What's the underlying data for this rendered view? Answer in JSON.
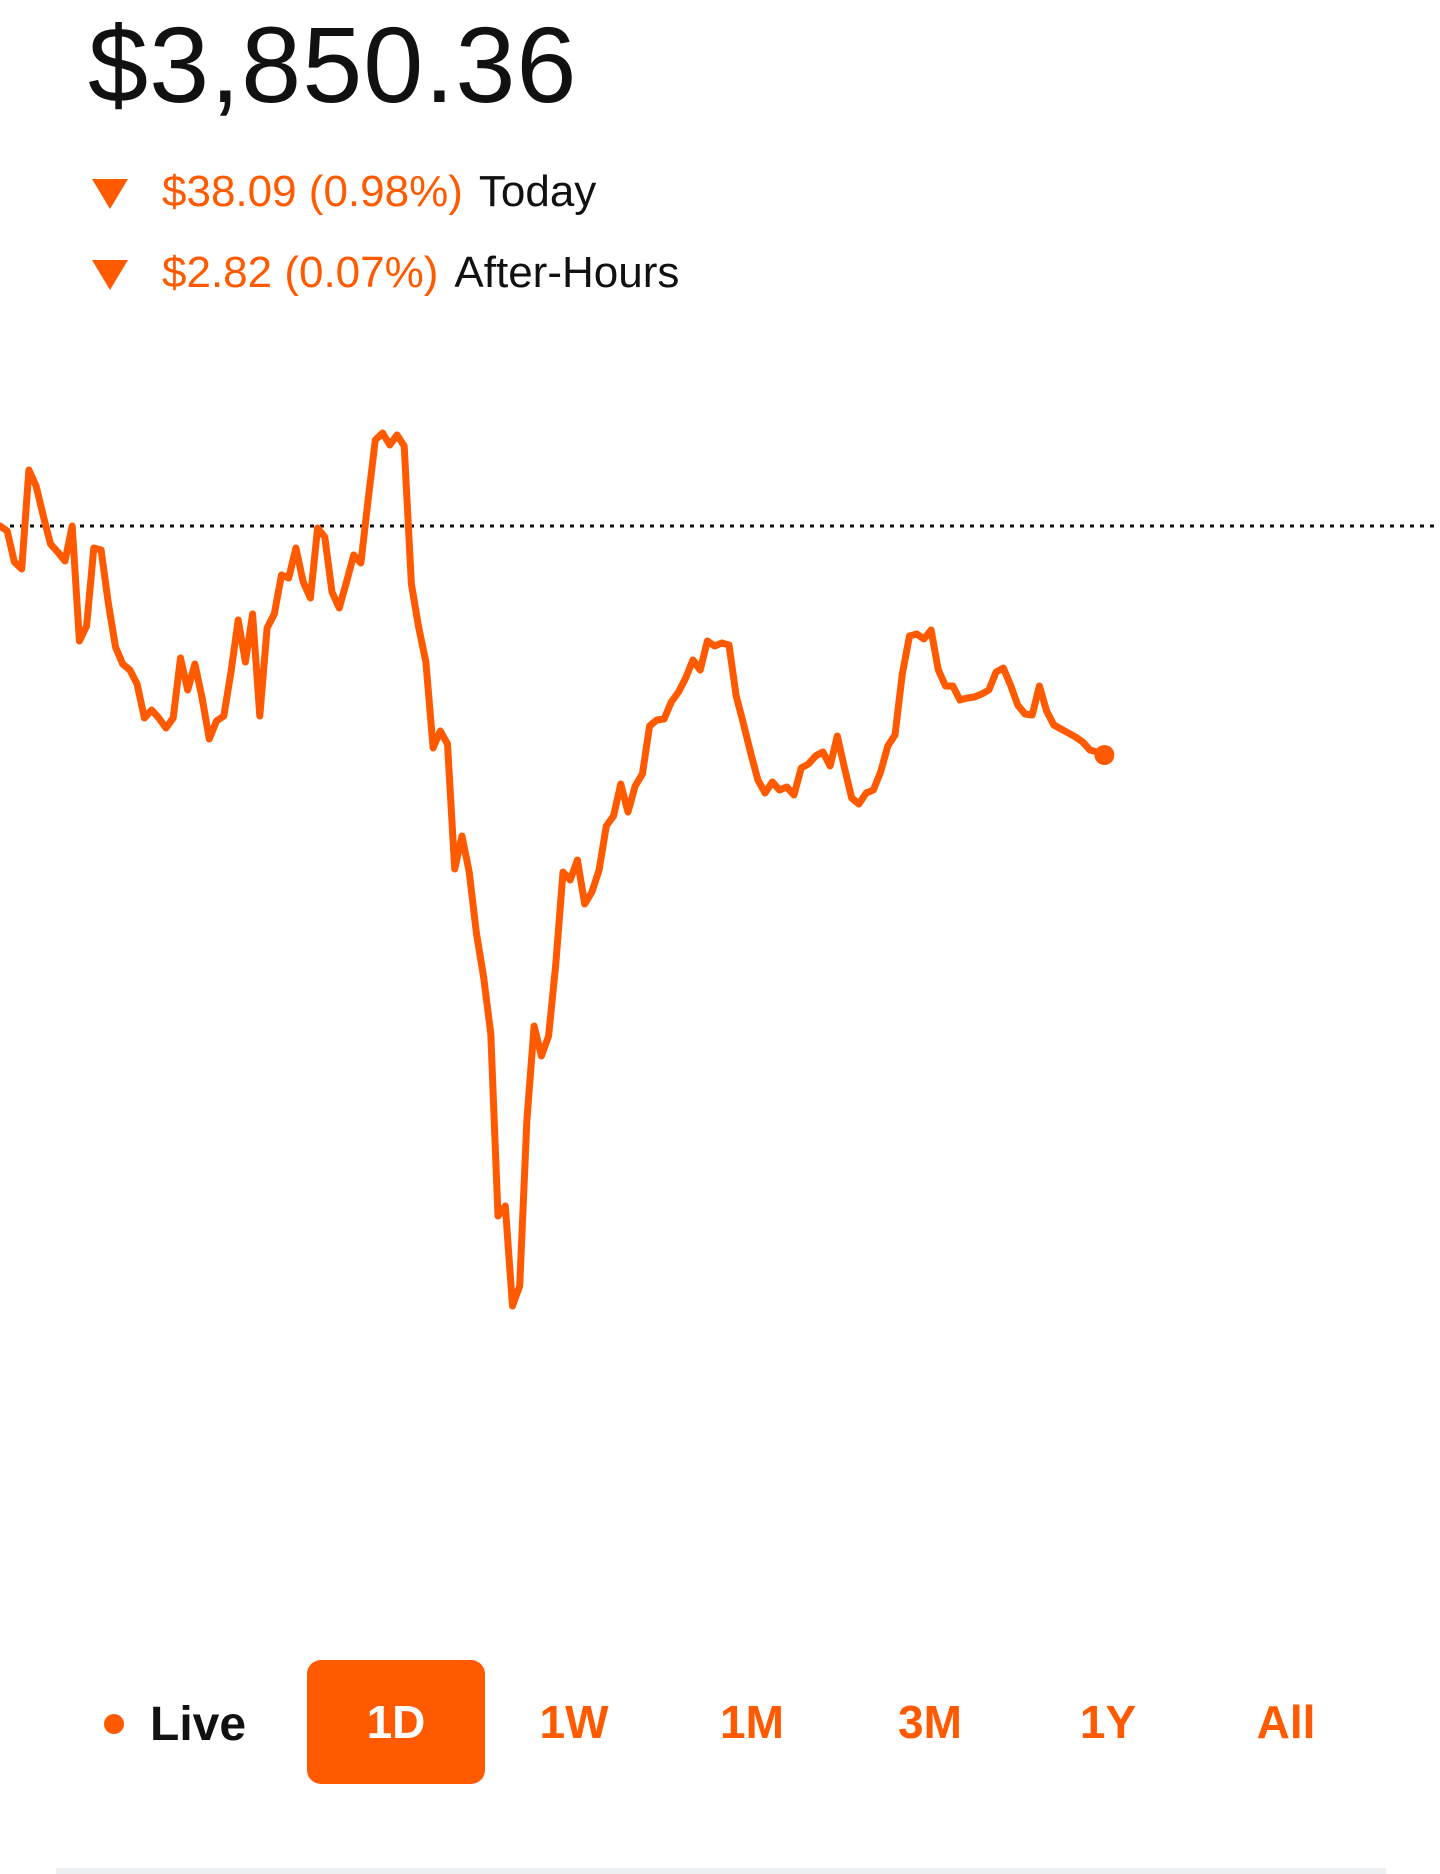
{
  "header": {
    "price": "$3,850.36",
    "today_change": "$38.09 (0.98%)",
    "today_label": "Today",
    "after_hours_change": "$2.82 (0.07%)",
    "after_hours_label": "After-Hours"
  },
  "colors": {
    "accent": "#ff5a00",
    "text": "#111111",
    "background": "#ffffff"
  },
  "range_selector": {
    "live_label": "Live",
    "ranges": [
      {
        "label": "1D",
        "active": true
      },
      {
        "label": "1W",
        "active": false
      },
      {
        "label": "1M",
        "active": false
      },
      {
        "label": "3M",
        "active": false
      },
      {
        "label": "1Y",
        "active": false
      },
      {
        "label": "All",
        "active": false
      }
    ]
  },
  "chart_data": {
    "type": "line",
    "baseline": 0,
    "total_points": 400,
    "series": [
      {
        "values": [
          0.0,
          -2.5,
          -18.0,
          -21.5,
          28.0,
          20.0,
          5.0,
          -9.0,
          -13.0,
          -17.5,
          0.0,
          -57.5,
          -50.0,
          -11.0,
          -12.0,
          -38.5,
          -60.5,
          -69.0,
          -72.0,
          -79.0,
          -96.0,
          -92.0,
          -96.0,
          -101.0,
          -96.0,
          -66.0,
          -82.0,
          -69.0,
          -86.0,
          -106.5,
          -97.5,
          -95.0,
          -73.0,
          -47.0,
          -68.0,
          -44.0,
          -95.0,
          -51.0,
          -44.0,
          -24.5,
          -26.0,
          -11.0,
          -28.0,
          -36.0,
          -1.0,
          -5.5,
          -33.0,
          -41.0,
          -28.0,
          -14.5,
          -18.5,
          13.0,
          43.0,
          46.5,
          40.5,
          45.5,
          40.0,
          -29.0,
          -50.5,
          -68.0,
          -111.0,
          -102.5,
          -109.0,
          -171.5,
          -155.0,
          -173.0,
          -203.5,
          -225.5,
          -254.0,
          -345.0,
          -340.0,
          -390.0,
          -380.0,
          -297.0,
          -250.0,
          -265.0,
          -255.0,
          -219.0,
          -173.0,
          -177.0,
          -167.0,
          -189.0,
          -183.0,
          -172.0,
          -150.0,
          -145.0,
          -129.0,
          -143.0,
          -130.0,
          -124.0,
          -100.0,
          -97.0,
          -96.5,
          -88.0,
          -83.0,
          -76.0,
          -67.0,
          -72.0,
          -57.5,
          -60.0,
          -58.5,
          -59.5,
          -85.0,
          -99.0,
          -113.5,
          -127.0,
          -133.5,
          -128.0,
          -132.0,
          -130.5,
          -134.5,
          -121.0,
          -119.0,
          -115.0,
          -113.0,
          -120.0,
          -105.0,
          -121.0,
          -136.0,
          -139.0,
          -133.5,
          -132.0,
          -123.0,
          -110.0,
          -104.5,
          -74.0,
          -55.0,
          -54.0,
          -56.5,
          -52.0,
          -72.0,
          -80.0,
          -80.0,
          -87.0,
          -86.0,
          -85.5,
          -84.0,
          -82.0,
          -73.0,
          -71.0,
          -79.5,
          -89.5,
          -94.0,
          -94.5,
          -80.0,
          -92.5,
          -99.5,
          -101.5,
          -103.5,
          -105.5,
          -108.0,
          -112.0,
          -113.0,
          -114.5
        ]
      }
    ]
  }
}
